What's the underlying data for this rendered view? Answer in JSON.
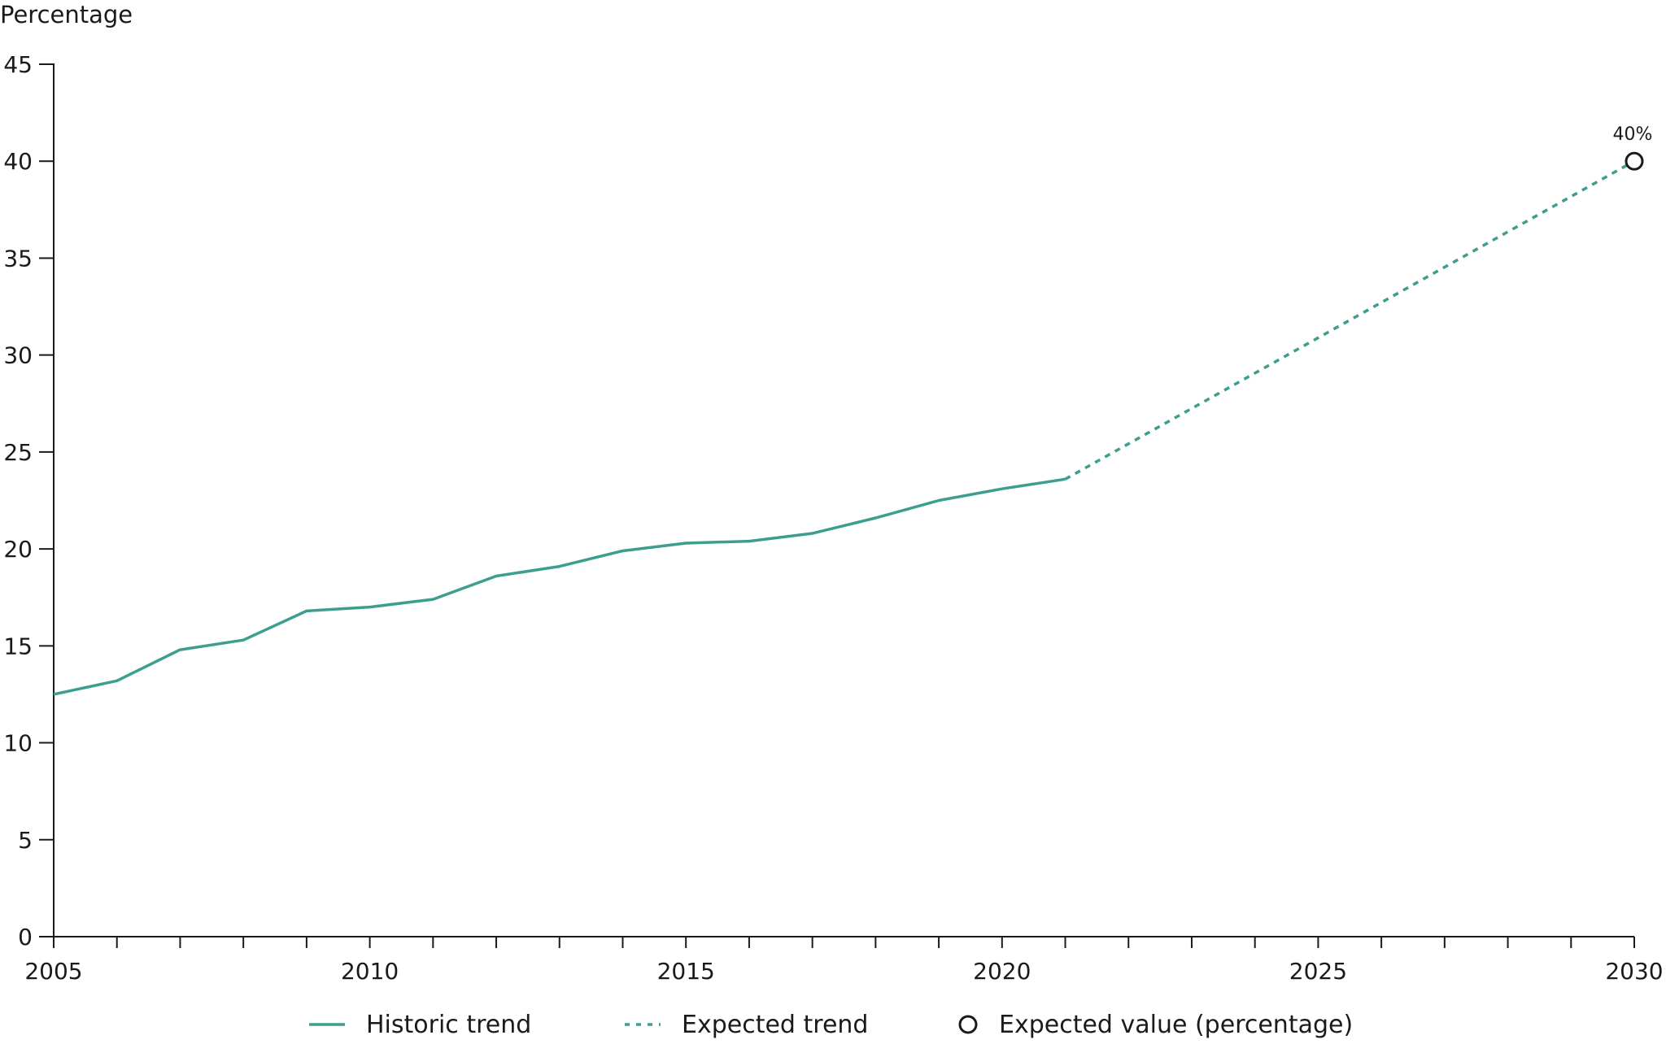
{
  "chart_data": {
    "type": "line",
    "title": "",
    "xlabel": "",
    "ylabel": "Percentage",
    "xlim": [
      2005,
      2030
    ],
    "ylim": [
      0,
      45
    ],
    "x_ticks_labeled": [
      "2005",
      "2010",
      "2015",
      "2020",
      "2025",
      "2030"
    ],
    "x_ticks_minor": [
      2005,
      2006,
      2007,
      2008,
      2009,
      2010,
      2011,
      2012,
      2013,
      2014,
      2015,
      2016,
      2017,
      2018,
      2019,
      2020,
      2021,
      2022,
      2023,
      2024,
      2025,
      2026,
      2027,
      2028,
      2029,
      2030
    ],
    "y_ticks": [
      "0",
      "5",
      "10",
      "15",
      "20",
      "25",
      "30",
      "35",
      "40",
      "45"
    ],
    "grid": false,
    "legend_position": "bottom",
    "series": [
      {
        "name": "Historic trend",
        "style": "solid",
        "color": "#3d9d8f",
        "x": [
          2005,
          2006,
          2007,
          2008,
          2009,
          2010,
          2011,
          2012,
          2013,
          2014,
          2015,
          2016,
          2017,
          2018,
          2019,
          2020,
          2021
        ],
        "y": [
          12.5,
          13.2,
          14.8,
          15.3,
          16.8,
          17.0,
          17.4,
          18.6,
          19.1,
          19.9,
          20.3,
          20.4,
          20.8,
          21.6,
          22.5,
          23.1,
          23.6
        ]
      },
      {
        "name": "Expected trend",
        "style": "dotted",
        "color": "#3d9d8f",
        "x": [
          2021,
          2030
        ],
        "y": [
          23.6,
          40.0
        ]
      },
      {
        "name": "Expected value (percentage)",
        "style": "marker",
        "color": "#1a1a1a",
        "x": [
          2030
        ],
        "y": [
          40.0
        ],
        "labels": [
          "40%"
        ]
      }
    ]
  }
}
